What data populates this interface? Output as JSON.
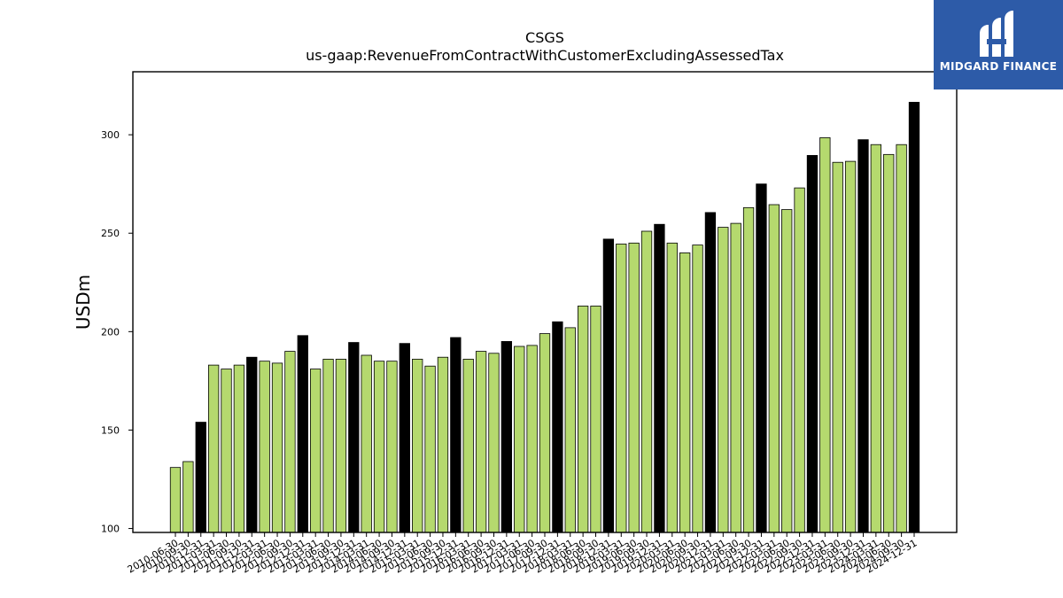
{
  "logo": {
    "text": "MIDGARD FINANCE",
    "color": "#2d5ba8"
  },
  "chart_data": {
    "type": "bar",
    "title": "CSGS",
    "subtitle": "us-gaap:RevenueFromContractWithCustomerExcludingAssessedTax",
    "ylabel": "USDm",
    "xlabel": "",
    "ylim": [
      98,
      332
    ],
    "yticks": [
      100,
      150,
      200,
      250,
      300
    ],
    "grid": false,
    "colors": {
      "quarter": "#b5d96e",
      "annual": "#000000",
      "edge": "#000000"
    },
    "categories": [
      "2010-06-30",
      "2010-09-30",
      "2010-12-31",
      "2011-03-31",
      "2011-06-30",
      "2011-09-30",
      "2011-12-31",
      "2012-03-31",
      "2012-06-30",
      "2012-09-30",
      "2012-12-31",
      "2013-03-31",
      "2013-06-30",
      "2013-09-30",
      "2013-12-31",
      "2014-03-31",
      "2014-06-30",
      "2014-09-30",
      "2014-12-31",
      "2015-03-31",
      "2015-06-30",
      "2015-09-30",
      "2015-12-31",
      "2016-03-31",
      "2016-06-30",
      "2016-09-30",
      "2016-12-31",
      "2017-03-31",
      "2017-06-30",
      "2017-09-30",
      "2017-12-31",
      "2018-03-31",
      "2018-06-30",
      "2018-09-30",
      "2018-12-31",
      "2019-03-31",
      "2019-06-30",
      "2019-09-30",
      "2019-12-31",
      "2020-03-31",
      "2020-06-30",
      "2020-09-30",
      "2020-12-31",
      "2021-03-31",
      "2021-06-30",
      "2021-09-30",
      "2021-12-31",
      "2022-03-31",
      "2022-06-30",
      "2022-09-30",
      "2022-12-31",
      "2023-03-31",
      "2023-06-30",
      "2023-09-30",
      "2023-12-31",
      "2024-03-31",
      "2024-06-30",
      "2024-09-30",
      "2024-12-31"
    ],
    "values": [
      131,
      134,
      154,
      183,
      181,
      183,
      187,
      185,
      184,
      190,
      198,
      181,
      186,
      186,
      194.5,
      188,
      185,
      185,
      194,
      186,
      182.5,
      187,
      197,
      186,
      190,
      189,
      195,
      192.5,
      193,
      199,
      205,
      202,
      213,
      213,
      247,
      244.5,
      245,
      251,
      254.5,
      245,
      240,
      244,
      260.5,
      253,
      255,
      263,
      275,
      264.5,
      262,
      273,
      289.5,
      298.5,
      286,
      286.5,
      297.5,
      295,
      290,
      295,
      316.5
    ],
    "annual_flags": [
      0,
      0,
      1,
      0,
      0,
      0,
      1,
      0,
      0,
      0,
      1,
      0,
      0,
      0,
      1,
      0,
      0,
      0,
      1,
      0,
      0,
      0,
      1,
      0,
      0,
      0,
      1,
      0,
      0,
      0,
      1,
      0,
      0,
      0,
      1,
      0,
      0,
      0,
      1,
      0,
      0,
      0,
      1,
      0,
      0,
      0,
      1,
      0,
      0,
      0,
      1,
      0,
      0,
      0,
      1,
      0,
      0,
      0,
      1
    ]
  }
}
